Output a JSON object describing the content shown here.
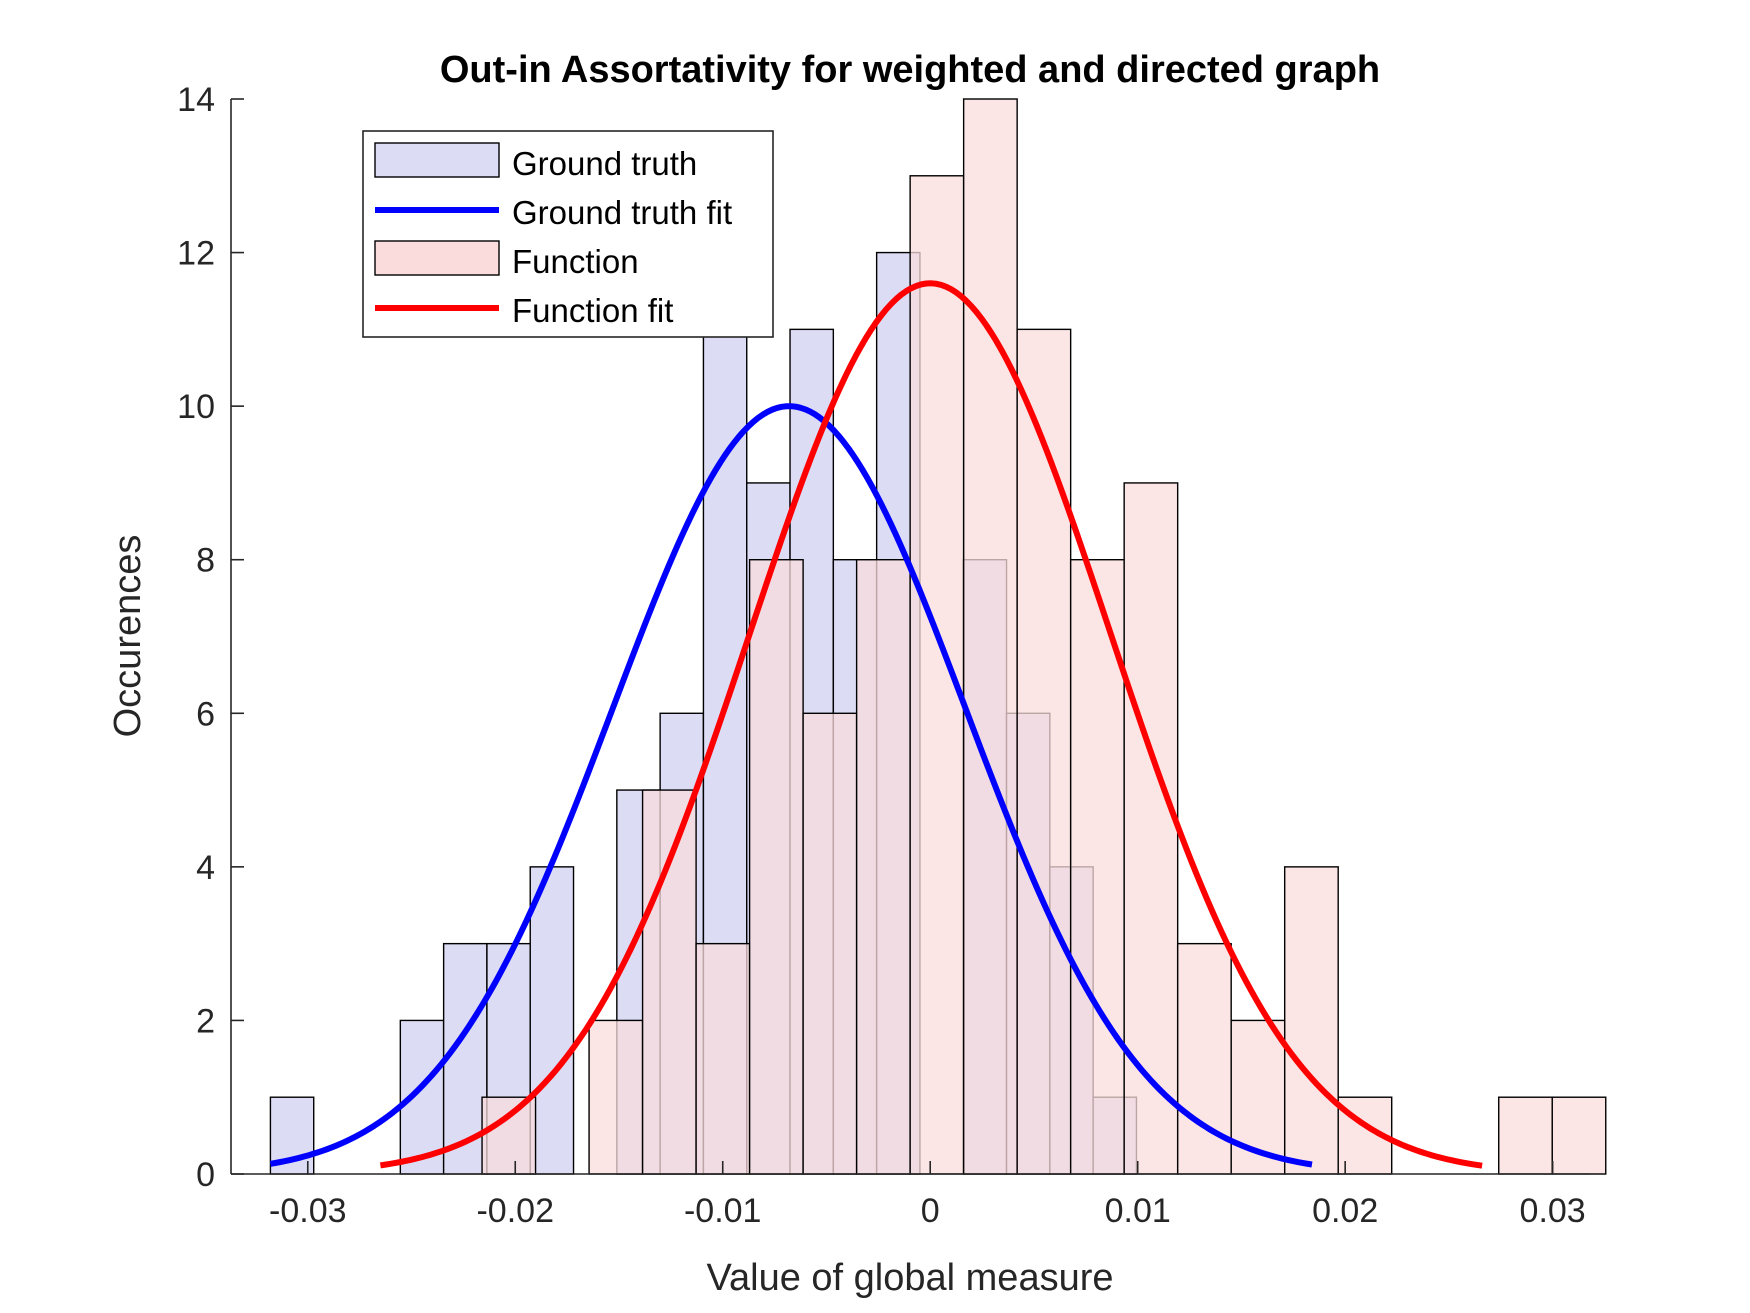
{
  "chart_data": {
    "type": "bar",
    "title": "Out-in Assortativity for weighted and directed graph",
    "xlabel": "Value of global measure",
    "ylabel": "Occurences",
    "xlim": [
      -0.0337,
      0.0318
    ],
    "ylim": [
      0,
      14
    ],
    "x_ticks": [
      -0.03,
      -0.02,
      -0.01,
      0,
      0.01,
      0.02,
      0.03
    ],
    "x_tick_labels": [
      "-0.03",
      "-0.02",
      "-0.01",
      "0",
      "0.01",
      "0.02",
      "0.03"
    ],
    "y_ticks": [
      0,
      2,
      4,
      6,
      8,
      10,
      12,
      14
    ],
    "y_tick_labels": [
      "0",
      "2",
      "4",
      "6",
      "8",
      "10",
      "12",
      "14"
    ],
    "grid": false,
    "legend_position": "top-left",
    "colors": {
      "ground_truth_bar": "#dcdcf5",
      "ground_truth_fit": "#0000ff",
      "function_bar": "#fadcdc",
      "function_fit": "#ff0000"
    },
    "series": [
      {
        "name": "Ground truth",
        "kind": "histogram",
        "bin_start": -0.0318,
        "bin_width": 0.002087,
        "counts": [
          1,
          0,
          0,
          2,
          3,
          3,
          4,
          0,
          5,
          6,
          11,
          9,
          11,
          8,
          12,
          0,
          8,
          6,
          4,
          1
        ]
      },
      {
        "name": "Ground truth fit",
        "kind": "line",
        "mean": -0.0068,
        "sigma": 0.0085,
        "peak": 10.0,
        "x_range": [
          -0.0318,
          0.0184
        ]
      },
      {
        "name": "Function",
        "kind": "histogram",
        "bin_start": -0.0216,
        "bin_width": 0.002579,
        "counts": [
          1,
          0,
          2,
          5,
          3,
          8,
          6,
          8,
          13,
          14,
          11,
          8,
          9,
          3,
          2,
          4,
          1,
          0,
          0,
          1,
          1
        ]
      },
      {
        "name": "Function fit",
        "kind": "line",
        "mean": 0.0,
        "sigma": 0.0087,
        "peak": 11.6,
        "x_range": [
          -0.0265,
          0.0266
        ]
      }
    ]
  }
}
